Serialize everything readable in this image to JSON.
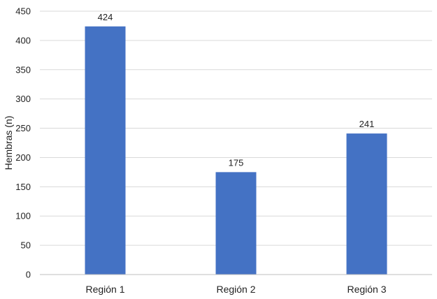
{
  "chart_data": {
    "type": "bar",
    "categories": [
      "Región 1",
      "Región 2",
      "Región 3"
    ],
    "values": [
      424,
      175,
      241
    ],
    "data_labels": [
      "424",
      "175",
      "241"
    ],
    "title": "",
    "xlabel": "",
    "ylabel": "Hembras (n)",
    "ylim": [
      0,
      450
    ],
    "yticks": [
      0,
      50,
      100,
      150,
      200,
      250,
      300,
      350,
      400,
      450
    ],
    "grid": true,
    "legend": "none",
    "bar_color": "#4472C4",
    "grid_color": "#D9D9D9",
    "axis_color": "#BFBFBF"
  }
}
